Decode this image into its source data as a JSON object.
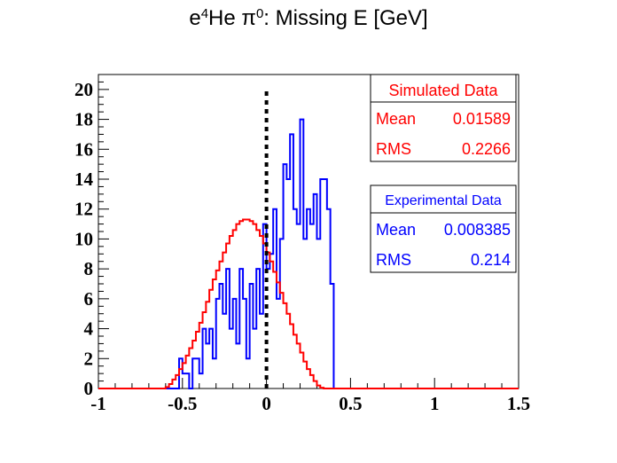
{
  "chart_data": {
    "type": "histogram",
    "title_prefix": "e",
    "title_sup1": "4",
    "title_mid": "He π",
    "title_sup2": "0",
    "title_suffix": ": Missing E [GeV]",
    "xlim": [
      -1,
      1.5
    ],
    "ylim": [
      0,
      21
    ],
    "x_ticks": [
      -1,
      -0.5,
      0,
      0.5,
      1,
      1.5
    ],
    "x_tick_labels": [
      "-1",
      "-0.5",
      "0",
      "0.5",
      "1",
      "1.5"
    ],
    "y_ticks": [
      0,
      2,
      4,
      6,
      8,
      10,
      12,
      14,
      16,
      18,
      20
    ],
    "y_tick_labels": [
      "0",
      "2",
      "4",
      "6",
      "8",
      "10",
      "12",
      "14",
      "16",
      "18",
      "20"
    ],
    "bin_width": 0.02,
    "reference_line_x": 0,
    "series": [
      {
        "name": "Simulated Data",
        "color": "#ff0000",
        "bins_start": -1.0,
        "values": [
          0,
          0,
          0,
          0,
          0,
          0,
          0,
          0,
          0,
          0,
          0,
          0,
          0,
          0,
          0,
          0,
          0,
          0,
          0,
          0,
          0.1,
          0.3,
          0.6,
          0.9,
          1.3,
          1.7,
          2.2,
          2.7,
          3.2,
          3.8,
          4.4,
          5.1,
          5.8,
          6.6,
          7.3,
          7.9,
          8.5,
          9.1,
          9.7,
          10.2,
          10.6,
          11.0,
          11.2,
          11.3,
          11.3,
          11.2,
          11.0,
          10.6,
          10.2,
          9.7,
          9.1,
          8.5,
          7.8,
          7.1,
          6.4,
          5.7,
          5.0,
          4.3,
          3.6,
          3.0,
          2.4,
          1.8,
          1.3,
          0.9,
          0.5,
          0.2,
          0.05,
          0,
          0,
          0,
          0,
          0,
          0,
          0,
          0,
          0,
          0,
          0,
          0,
          0,
          0,
          0,
          0,
          0,
          0,
          0,
          0,
          0,
          0,
          0,
          0,
          0,
          0,
          0,
          0,
          0,
          0,
          0,
          0,
          0,
          0,
          0,
          0,
          0,
          0,
          0,
          0,
          0,
          0,
          0,
          0,
          0,
          0,
          0,
          0,
          0,
          0,
          0,
          0,
          0,
          0,
          0,
          0,
          0,
          0,
          0,
          0,
          0,
          0,
          0,
          0,
          0,
          0,
          0,
          0
        ]
      },
      {
        "name": "Experimental Data",
        "color": "#0000ff",
        "bins_start": -1.0,
        "values": [
          0,
          0,
          0,
          0,
          0,
          0,
          0,
          0,
          0,
          0,
          0,
          0,
          0,
          0,
          0,
          0,
          0,
          0,
          0,
          0,
          0,
          0,
          0,
          0,
          2,
          1,
          1,
          0,
          2,
          2,
          1,
          4,
          3,
          4,
          2,
          6,
          7,
          5,
          8,
          4,
          6,
          3,
          8,
          6,
          2,
          7,
          4,
          8,
          5,
          11,
          8,
          9,
          12,
          6,
          10,
          15,
          14,
          17,
          12,
          11,
          18,
          10,
          12,
          11,
          13,
          10,
          14,
          14,
          12,
          7,
          0,
          0,
          0,
          0,
          0,
          0,
          0,
          0,
          0,
          0,
          0,
          0,
          0,
          0,
          0,
          0,
          0,
          0,
          0,
          0,
          0,
          0,
          0,
          0,
          0,
          0,
          0,
          0,
          0,
          0,
          0,
          0,
          0,
          0,
          0,
          0,
          0,
          0,
          0,
          0,
          0,
          0,
          0,
          0,
          0,
          0,
          0,
          0,
          0,
          0,
          0,
          0,
          0,
          0,
          0,
          0,
          0,
          0,
          0,
          0,
          0,
          0,
          0,
          0,
          0
        ]
      }
    ],
    "stats": {
      "sim_title": "Simulated Data",
      "sim_mean_label": "Mean",
      "sim_mean_value": "0.01589",
      "sim_rms_label": "RMS",
      "sim_rms_value": "0.2266",
      "exp_title": "Experimental Data",
      "exp_mean_label": "Mean",
      "exp_mean_value": "0.008385",
      "exp_rms_label": "RMS",
      "exp_rms_value": "0.214"
    }
  }
}
